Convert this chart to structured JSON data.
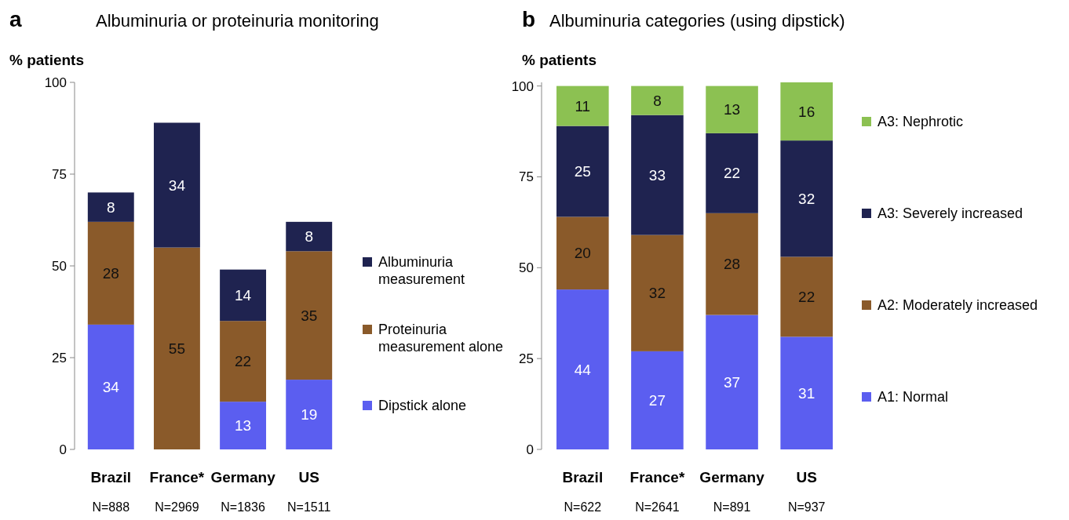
{
  "chart_data": [
    {
      "type": "bar",
      "stacked": true,
      "title": "Albuminuria or proteinuria monitoring",
      "ylabel": "% patients",
      "categories": [
        "Brazil",
        "France*",
        "Germany",
        "US"
      ],
      "ylim": [
        0,
        100
      ],
      "yticks": [
        0,
        25,
        50,
        75,
        100
      ],
      "data_labels": true,
      "legend": "right",
      "annotations": [
        "a",
        "N=888",
        "N=2969",
        "N=1836",
        "N=1511"
      ],
      "series": [
        {
          "name": "Dipstick alone",
          "color": "#5b5ef0",
          "values": [
            34,
            null,
            13,
            19
          ]
        },
        {
          "name": "Proteinuria measurement alone",
          "color": "#8a5a2a",
          "values": [
            28,
            55,
            22,
            35
          ]
        },
        {
          "name": "Albuminuria measurement",
          "color": "#1f2350",
          "values": [
            8,
            34,
            14,
            8
          ]
        }
      ]
    },
    {
      "type": "bar",
      "stacked": true,
      "title": "Albuminuria categories (using dipstick)",
      "ylabel": "% patients",
      "categories": [
        "Brazil",
        "France*",
        "Germany",
        "US"
      ],
      "ylim": [
        0,
        101
      ],
      "yticks": [
        0,
        25,
        50,
        75,
        100
      ],
      "data_labels": true,
      "legend": "right",
      "annotations": [
        "b",
        "N=622",
        "N=2641",
        "N=891",
        "N=937"
      ],
      "series": [
        {
          "name": "A1: Normal",
          "color": "#5b5ef0",
          "values": [
            44,
            27,
            37,
            31
          ]
        },
        {
          "name": "A2: Moderately increased",
          "color": "#8a5a2a",
          "values": [
            20,
            32,
            28,
            22
          ]
        },
        {
          "name": "A3: Severely increased",
          "color": "#1f2350",
          "values": [
            25,
            33,
            22,
            32
          ]
        },
        {
          "name": "A3: Nephrotic",
          "color": "#8cc152",
          "values": [
            11,
            8,
            13,
            16
          ]
        }
      ]
    }
  ]
}
